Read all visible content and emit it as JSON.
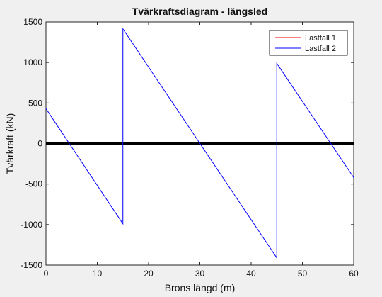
{
  "chart_data": {
    "type": "line",
    "title": "Tvärkraftsdiagram - längsled",
    "xlabel": "Brons längd (m)",
    "ylabel": "Tvärkraft (kN)",
    "xlim": [
      0,
      60
    ],
    "ylim": [
      -1500,
      1500
    ],
    "xticks": [
      0,
      10,
      20,
      30,
      40,
      50,
      60
    ],
    "yticks": [
      -1500,
      -1000,
      -500,
      0,
      500,
      1000,
      1500
    ],
    "grid": false,
    "legend_position": "top-right",
    "zero_line": {
      "y": 0,
      "color": "#000000"
    },
    "series": [
      {
        "name": "Lastfall 1",
        "color": "#ff0000",
        "x": [],
        "y": []
      },
      {
        "name": "Lastfall 2",
        "color": "#0000ff",
        "x": [
          0,
          15,
          15,
          45,
          45,
          60
        ],
        "y": [
          430,
          -990,
          1415,
          -1410,
          990,
          -420
        ]
      }
    ]
  }
}
